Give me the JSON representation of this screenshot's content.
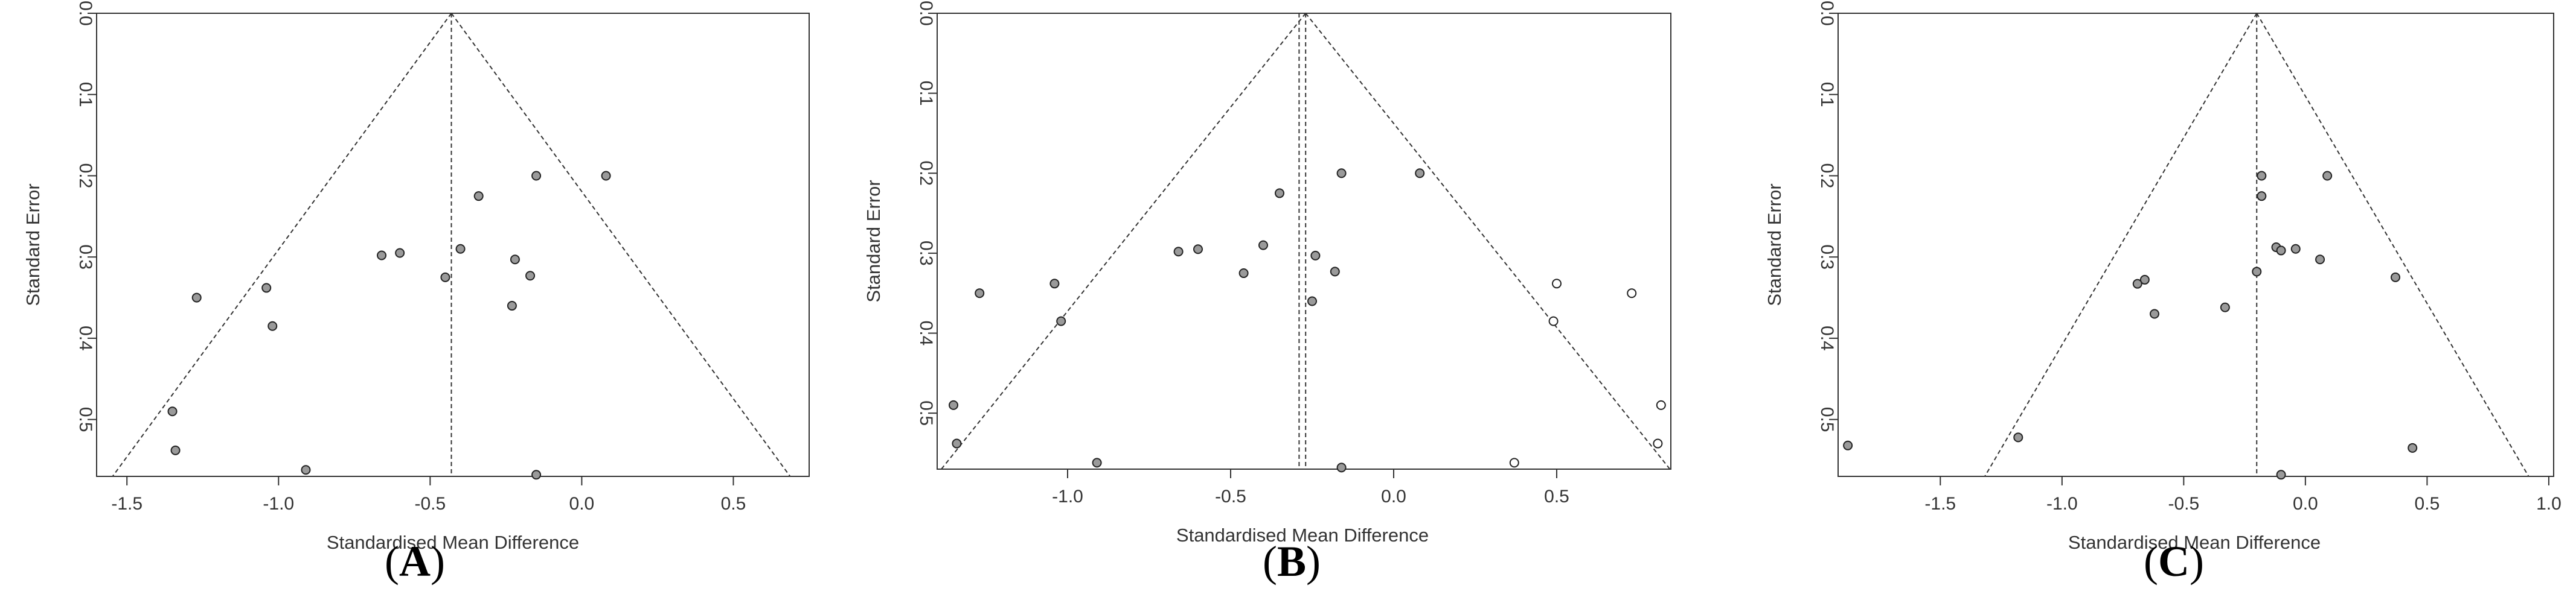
{
  "chart_data": [
    {
      "type": "scatter",
      "panel_label": "A",
      "xlabel": "Standardised Mean Difference",
      "ylabel": "Standard Error",
      "xlim": [
        -1.6,
        0.75
      ],
      "ylim": [
        0,
        0.57
      ],
      "y_reversed": true,
      "xticks": [
        -1.5,
        -1.0,
        -0.5,
        0.0,
        0.5
      ],
      "xtick_labels": [
        "-1.5",
        "-1.0",
        "-0.5",
        "0.0",
        "0.5"
      ],
      "yticks": [
        0.0,
        0.1,
        0.2,
        0.3,
        0.4,
        0.5
      ],
      "ytick_labels": [
        "0.0",
        "0.1",
        "0.2",
        "0.3",
        "0.4",
        "0.5"
      ],
      "funnel_center": -0.43,
      "center_lines": [
        -0.43
      ],
      "funnel_base_se": 0.57,
      "grid": false,
      "points": [
        {
          "x": 0.08,
          "y": 0.2,
          "filled": true
        },
        {
          "x": -0.15,
          "y": 0.2,
          "filled": true
        },
        {
          "x": -0.34,
          "y": 0.225,
          "filled": true
        },
        {
          "x": -0.4,
          "y": 0.29,
          "filled": true
        },
        {
          "x": -0.6,
          "y": 0.295,
          "filled": true
        },
        {
          "x": -0.66,
          "y": 0.298,
          "filled": true
        },
        {
          "x": -0.22,
          "y": 0.303,
          "filled": true
        },
        {
          "x": -0.17,
          "y": 0.323,
          "filled": true
        },
        {
          "x": -0.45,
          "y": 0.325,
          "filled": true
        },
        {
          "x": -1.04,
          "y": 0.338,
          "filled": true
        },
        {
          "x": -1.27,
          "y": 0.35,
          "filled": true
        },
        {
          "x": -0.23,
          "y": 0.36,
          "filled": true
        },
        {
          "x": -1.02,
          "y": 0.385,
          "filled": true
        },
        {
          "x": -1.35,
          "y": 0.49,
          "filled": true
        },
        {
          "x": -1.34,
          "y": 0.538,
          "filled": true
        },
        {
          "x": -0.91,
          "y": 0.562,
          "filled": true
        },
        {
          "x": -0.15,
          "y": 0.568,
          "filled": true
        }
      ]
    },
    {
      "type": "scatter",
      "panel_label": "B",
      "xlabel": "Standardised Mean Difference",
      "ylabel": "Standard Error",
      "xlim": [
        -1.4,
        0.85
      ],
      "ylim": [
        0,
        0.57
      ],
      "y_reversed": true,
      "xticks": [
        -1.0,
        -0.5,
        0.0,
        0.5
      ],
      "xtick_labels": [
        "-1.0",
        "-0.5",
        "0.0",
        "0.5"
      ],
      "yticks": [
        0.0,
        0.1,
        0.2,
        0.3,
        0.4,
        0.5
      ],
      "ytick_labels": [
        "0.0",
        "0.1",
        "0.2",
        "0.3",
        "0.4",
        "0.5"
      ],
      "funnel_center": -0.27,
      "center_lines": [
        -0.29,
        -0.27
      ],
      "funnel_base_se": 0.57,
      "grid": false,
      "points": [
        {
          "x": 0.08,
          "y": 0.2,
          "filled": true
        },
        {
          "x": -0.16,
          "y": 0.2,
          "filled": true
        },
        {
          "x": -0.35,
          "y": 0.225,
          "filled": true
        },
        {
          "x": -0.4,
          "y": 0.29,
          "filled": true
        },
        {
          "x": -0.6,
          "y": 0.295,
          "filled": true
        },
        {
          "x": -0.66,
          "y": 0.298,
          "filled": true
        },
        {
          "x": -0.24,
          "y": 0.303,
          "filled": true
        },
        {
          "x": -0.18,
          "y": 0.323,
          "filled": true
        },
        {
          "x": -0.46,
          "y": 0.325,
          "filled": true
        },
        {
          "x": -1.04,
          "y": 0.338,
          "filled": true
        },
        {
          "x": -1.27,
          "y": 0.35,
          "filled": true
        },
        {
          "x": -0.25,
          "y": 0.36,
          "filled": true
        },
        {
          "x": -1.02,
          "y": 0.385,
          "filled": true
        },
        {
          "x": -1.35,
          "y": 0.49,
          "filled": true
        },
        {
          "x": -1.34,
          "y": 0.538,
          "filled": true
        },
        {
          "x": -0.91,
          "y": 0.562,
          "filled": true
        },
        {
          "x": -0.16,
          "y": 0.568,
          "filled": true
        },
        {
          "x": 0.5,
          "y": 0.338,
          "filled": false
        },
        {
          "x": 0.73,
          "y": 0.35,
          "filled": false
        },
        {
          "x": 0.49,
          "y": 0.385,
          "filled": false
        },
        {
          "x": 0.82,
          "y": 0.49,
          "filled": false
        },
        {
          "x": 0.81,
          "y": 0.538,
          "filled": false
        },
        {
          "x": 0.37,
          "y": 0.562,
          "filled": false
        }
      ]
    },
    {
      "type": "scatter",
      "panel_label": "C",
      "xlabel": "Standardised Mean Difference",
      "ylabel": "Standard Error",
      "xlim": [
        -1.92,
        1.02
      ],
      "ylim": [
        0,
        0.57
      ],
      "y_reversed": true,
      "xticks": [
        -1.5,
        -1.0,
        -0.5,
        0.0,
        0.5,
        1.0
      ],
      "xtick_labels": [
        "-1.5",
        "-1.0",
        "-0.5",
        "0.0",
        "0.5",
        "1.0"
      ],
      "yticks": [
        0.0,
        0.1,
        0.2,
        0.3,
        0.4,
        0.5
      ],
      "ytick_labels": [
        "0.0",
        "0.1",
        "0.2",
        "0.3",
        "0.4",
        "0.5"
      ],
      "funnel_center": -0.2,
      "center_lines": [
        -0.2
      ],
      "funnel_base_se": 0.57,
      "grid": false,
      "points": [
        {
          "x": -0.18,
          "y": 0.2,
          "filled": true
        },
        {
          "x": 0.09,
          "y": 0.2,
          "filled": true
        },
        {
          "x": -0.18,
          "y": 0.225,
          "filled": true
        },
        {
          "x": -0.12,
          "y": 0.288,
          "filled": true
        },
        {
          "x": -0.1,
          "y": 0.292,
          "filled": true
        },
        {
          "x": -0.04,
          "y": 0.29,
          "filled": true
        },
        {
          "x": 0.06,
          "y": 0.303,
          "filled": true
        },
        {
          "x": -0.2,
          "y": 0.318,
          "filled": true
        },
        {
          "x": 0.37,
          "y": 0.325,
          "filled": true
        },
        {
          "x": -0.66,
          "y": 0.328,
          "filled": true
        },
        {
          "x": -0.69,
          "y": 0.333,
          "filled": true
        },
        {
          "x": -0.33,
          "y": 0.362,
          "filled": true
        },
        {
          "x": -0.62,
          "y": 0.37,
          "filled": true
        },
        {
          "x": -1.88,
          "y": 0.532,
          "filled": true
        },
        {
          "x": -1.18,
          "y": 0.522,
          "filled": true
        },
        {
          "x": 0.44,
          "y": 0.535,
          "filled": true
        },
        {
          "x": -0.1,
          "y": 0.568,
          "filled": true
        }
      ]
    }
  ]
}
